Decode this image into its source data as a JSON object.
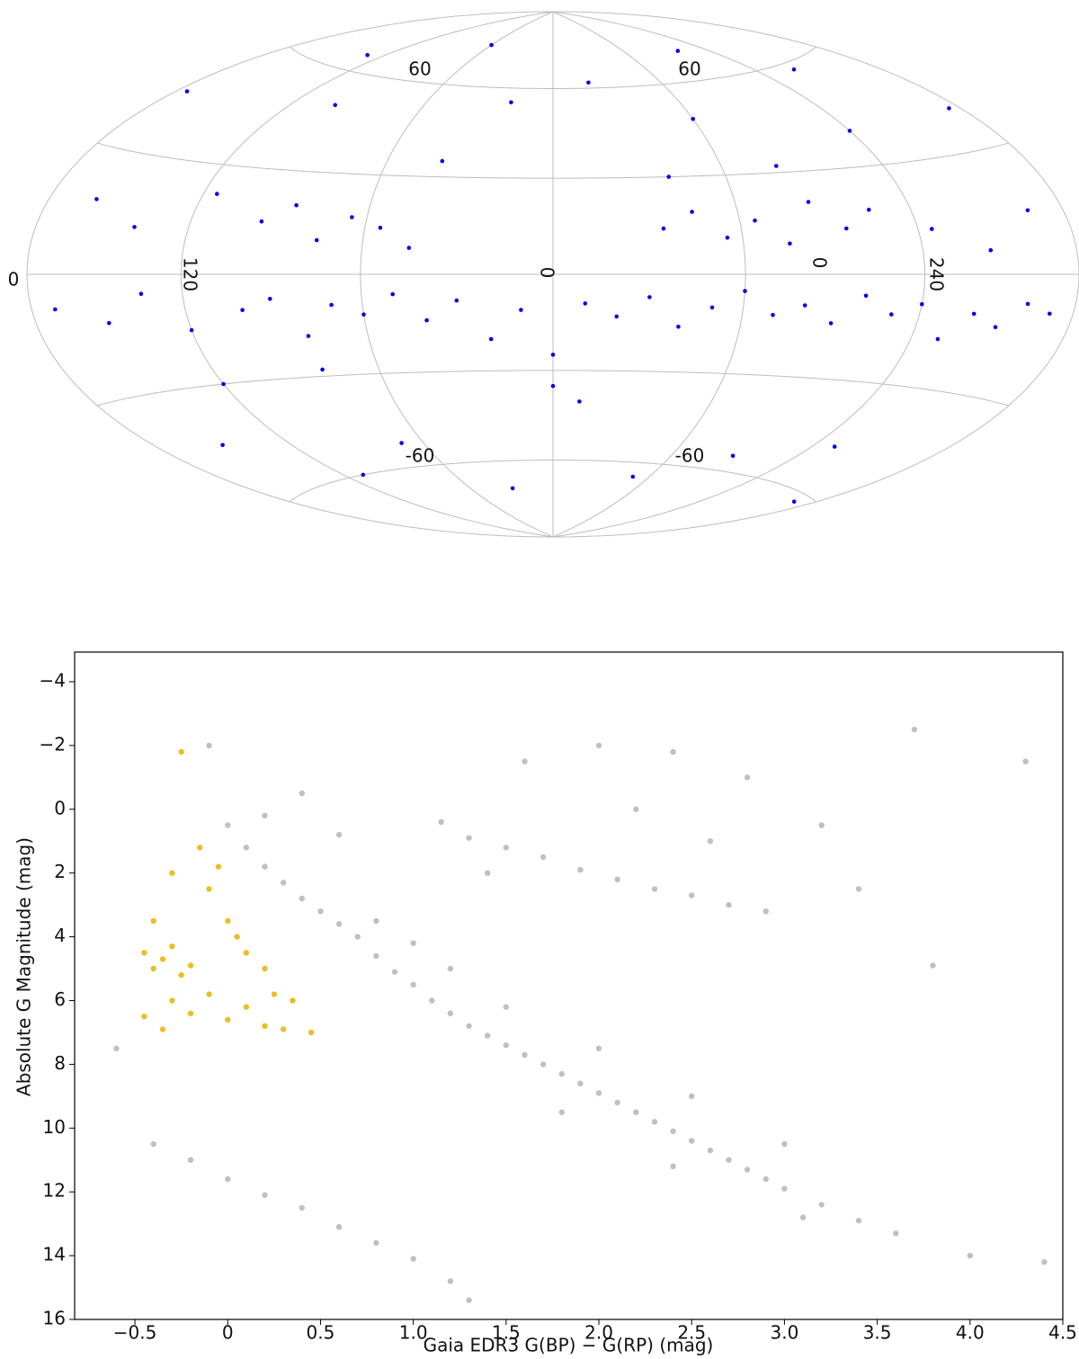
{
  "chart_data": [
    {
      "type": "skymap",
      "lon_labels": [
        0,
        120,
        0,
        0,
        240
      ],
      "lat_labels": [
        60,
        60,
        -60,
        -60
      ],
      "color": "#0000ee",
      "x": [
        -170,
        -150,
        -135,
        -120,
        -100,
        -90,
        -80,
        -70,
        -60,
        -50,
        -40,
        -30,
        -20,
        -10,
        0,
        10,
        20,
        30,
        40,
        50,
        60,
        70,
        80,
        90,
        100,
        110,
        120,
        130,
        140,
        150,
        160,
        170,
        -160,
        -140,
        -115,
        -95,
        -85,
        -75,
        -65,
        -55,
        -45,
        35,
        45,
        55,
        65,
        75,
        85,
        95,
        105,
        125,
        145,
        165,
        -175,
        -130,
        -100,
        -60,
        -20,
        20,
        60,
        100,
        140,
        175,
        -150,
        -110,
        -70,
        -30,
        10,
        50,
        90,
        130,
        170,
        -40,
        0,
        40,
        -120,
        120,
        -80,
        80
      ],
      "values": [
        -8,
        -12,
        -5,
        -15,
        -10,
        -7,
        -18,
        -9,
        -12,
        -6,
        -14,
        -8,
        -20,
        -11,
        -25,
        -9,
        -13,
        -7,
        -16,
        -10,
        -5,
        -12,
        -9,
        -14,
        -6,
        -11,
        -8,
        -17,
        -10,
        -13,
        -7,
        -9,
        18,
        12,
        22,
        15,
        20,
        10,
        17,
        14,
        8,
        14,
        19,
        11,
        16,
        9,
        21,
        13,
        18,
        12,
        6,
        15,
        45,
        65,
        50,
        75,
        55,
        62,
        48,
        70,
        58,
        40,
        -45,
        -60,
        -52,
        -70,
        -40,
        -65,
        -55,
        -48,
        -62,
        35,
        -35,
        30,
        -30,
        40,
        -28,
        32
      ]
    },
    {
      "type": "scatter",
      "x_label": "Gaia EDR3 G(BP) − G(RP) (mag)",
      "y_label": "Absolute G Magnitude (mag)",
      "xlim": [
        -0.825,
        4.5
      ],
      "ylim": [
        16,
        -4.93
      ],
      "xticks": [
        {
          "value": -0.5,
          "label": "−0.5"
        },
        0,
        0.5,
        {
          "value": 1,
          "label": "1.0"
        },
        1.5,
        {
          "value": 2,
          "label": "2.0"
        },
        2.5,
        {
          "value": 3,
          "label": "3.0"
        },
        3.5,
        {
          "value": 4,
          "label": "4.0"
        },
        4.5
      ],
      "yticks": [
        {
          "value": -4,
          "label": "−4"
        },
        {
          "value": -2,
          "label": "−2"
        },
        0,
        2,
        4,
        6,
        8,
        10,
        12,
        14,
        16
      ],
      "series": [
        {
          "color": "#8c8c8c",
          "x": [
            0.0,
            0.1,
            0.2,
            0.3,
            0.4,
            0.5,
            0.6,
            0.7,
            0.8,
            0.9,
            1.0,
            1.1,
            1.2,
            1.3,
            1.4,
            1.5,
            1.6,
            1.7,
            1.8,
            1.9,
            2.0,
            2.1,
            2.2,
            2.3,
            2.4,
            2.5,
            2.6,
            2.7,
            2.8,
            2.9,
            3.0,
            3.2,
            3.4,
            3.6,
            0.8,
            1.0,
            1.2,
            1.5,
            2.0,
            2.5,
            3.0,
            1.8,
            2.4,
            3.1,
            1.15,
            1.3,
            1.5,
            1.7,
            1.9,
            2.1,
            2.3,
            2.5,
            2.7,
            2.9,
            1.6,
            2.0,
            2.4,
            2.8,
            3.2,
            1.4,
            2.2,
            2.6,
            3.4,
            0.2,
            0.4,
            -0.1,
            0.6,
            -0.4,
            -0.2,
            0.0,
            0.2,
            0.4,
            0.6,
            0.8,
            1.0,
            1.2,
            1.3,
            4.0,
            4.4,
            4.3,
            3.8,
            -0.6,
            3.7
          ],
          "values": [
            0.5,
            1.2,
            1.8,
            2.3,
            2.8,
            3.2,
            3.6,
            4.0,
            4.6,
            5.1,
            5.5,
            6.0,
            6.4,
            6.8,
            7.1,
            7.4,
            7.7,
            8.0,
            8.3,
            8.6,
            8.9,
            9.2,
            9.5,
            9.8,
            10.1,
            10.4,
            10.7,
            11.0,
            11.3,
            11.6,
            11.9,
            12.4,
            12.9,
            13.3,
            3.5,
            4.2,
            5.0,
            6.2,
            7.5,
            9.0,
            10.5,
            9.5,
            11.2,
            12.8,
            0.4,
            0.9,
            1.2,
            1.5,
            1.9,
            2.2,
            2.5,
            2.7,
            3.0,
            3.2,
            -1.5,
            -2.0,
            -1.8,
            -1.0,
            0.5,
            2.0,
            0.0,
            1.0,
            2.5,
            0.2,
            -0.5,
            -2.0,
            0.8,
            10.5,
            11.0,
            11.6,
            12.1,
            12.5,
            13.1,
            13.6,
            14.1,
            14.8,
            15.4,
            14.0,
            14.2,
            -1.5,
            4.9,
            7.5,
            -2.5
          ]
        },
        {
          "color": "#e6b400",
          "x": [
            -0.45,
            -0.4,
            -0.35,
            -0.3,
            -0.25,
            -0.2,
            -0.45,
            -0.35,
            -0.2,
            -0.1,
            0.0,
            0.1,
            0.2,
            0.3,
            0.45,
            0.1,
            0.0,
            -0.1,
            -0.05,
            0.2,
            0.35,
            -0.3,
            -0.25,
            -0.4,
            -0.15,
            0.05,
            0.25,
            -0.3
          ],
          "values": [
            4.5,
            5.0,
            4.7,
            4.3,
            5.2,
            4.9,
            6.5,
            6.9,
            6.4,
            5.8,
            6.6,
            6.2,
            6.8,
            6.9,
            7.0,
            4.5,
            3.5,
            2.5,
            1.8,
            5.0,
            6.0,
            2.0,
            -1.8,
            3.5,
            1.2,
            4.0,
            5.8,
            6.0
          ]
        }
      ]
    }
  ]
}
